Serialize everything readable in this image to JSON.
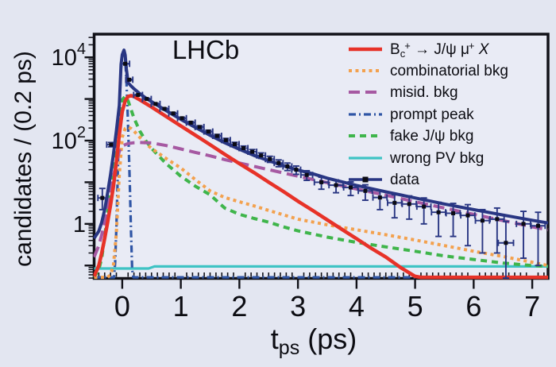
{
  "figure": {
    "title": "LHCb",
    "background": "#e3e6f1",
    "plot_background": "#e9ebf5",
    "frame_color": "#111118",
    "text_color": "#0c0c12"
  },
  "axes": {
    "x": {
      "label": "t_ps (ps)",
      "label_base": "t",
      "label_sub": "ps",
      "label_rest": " (ps)",
      "min": -0.48,
      "max": 7.27,
      "major_ticks": [
        0,
        1,
        2,
        3,
        4,
        5,
        6,
        7
      ],
      "minor_step": 0.1
    },
    "y": {
      "label": "candidates / (0.2 ps)",
      "scale": "log",
      "min": 0.049,
      "max": 36000,
      "decade_exponents": [
        -1,
        0,
        1,
        2,
        3,
        4
      ],
      "tick_labels": [
        {
          "value": 10000,
          "base": "10",
          "sup": "4"
        },
        {
          "value": 100,
          "base": "10",
          "sup": "2"
        },
        {
          "value": 1,
          "base": "1",
          "sup": null
        }
      ]
    }
  },
  "legend": {
    "items": [
      {
        "series": "signal",
        "label": "Bc+ → J/ψ μ+ X",
        "segments": [
          {
            "t": "B"
          },
          {
            "t": "c",
            "sub": true
          },
          {
            "t": "+",
            "sup": true
          },
          {
            "t": " → J/ψ "
          },
          {
            "t": "μ"
          },
          {
            "t": "+",
            "sup": true
          },
          {
            "t": " "
          },
          {
            "t": "X",
            "italic": true
          }
        ]
      },
      {
        "series": "combinatorial",
        "label": "combinatorial bkg"
      },
      {
        "series": "misid",
        "label": "misid. bkg"
      },
      {
        "series": "prompt",
        "label": "prompt peak"
      },
      {
        "series": "fake",
        "label": "fake J/ψ bkg"
      },
      {
        "series": "wrongpv",
        "label": "wrong PV bkg"
      },
      {
        "series": "data",
        "label": "data"
      }
    ]
  },
  "chart_data": {
    "type": "line",
    "title": "LHCb",
    "xlabel": "t_ps (ps)",
    "ylabel": "candidates / (0.2 ps)",
    "xlim": [
      -0.48,
      7.27
    ],
    "ylim": [
      0.049,
      36000
    ],
    "yscale": "log",
    "legend_position": "top-right",
    "grid": false,
    "draw_order": [
      "wrongpv",
      "prompt",
      "fake",
      "combinatorial",
      "misid",
      "signal",
      "total"
    ],
    "series": [
      {
        "id": "signal",
        "label": "Bc+ → J/ψ μ+ X",
        "color": "#e73228",
        "dash": "",
        "width": 4.5,
        "points": [
          [
            -0.48,
            0.055
          ],
          [
            -0.4,
            0.1
          ],
          [
            -0.35,
            0.2
          ],
          [
            -0.3,
            0.45
          ],
          [
            -0.25,
            1.1
          ],
          [
            -0.2,
            2.8
          ],
          [
            -0.15,
            8
          ],
          [
            -0.1,
            30
          ],
          [
            -0.05,
            140
          ],
          [
            0,
            500
          ],
          [
            0.05,
            900
          ],
          [
            0.1,
            1150
          ],
          [
            0.15,
            1200
          ],
          [
            0.2,
            1150
          ],
          [
            0.3,
            950
          ],
          [
            0.4,
            780
          ],
          [
            0.5,
            640
          ],
          [
            0.75,
            380
          ],
          [
            1,
            225
          ],
          [
            1.25,
            134
          ],
          [
            1.5,
            80
          ],
          [
            1.75,
            47
          ],
          [
            2,
            28
          ],
          [
            2.25,
            17
          ],
          [
            2.5,
            10
          ],
          [
            2.75,
            6
          ],
          [
            3,
            3.5
          ],
          [
            3.25,
            2.1
          ],
          [
            3.5,
            1.25
          ],
          [
            3.75,
            0.74
          ],
          [
            4,
            0.44
          ],
          [
            4.25,
            0.26
          ],
          [
            4.5,
            0.16
          ],
          [
            4.75,
            0.09
          ],
          [
            5,
            0.055
          ],
          [
            5.1,
            0.052
          ],
          [
            7.27,
            0.052
          ]
        ]
      },
      {
        "id": "combinatorial",
        "label": "combinatorial bkg",
        "color": "#f3a14e",
        "dash": "4 4.5",
        "width": 4,
        "points": [
          [
            -0.48,
            0.052
          ],
          [
            -0.25,
            0.052
          ],
          [
            -0.2,
            0.06
          ],
          [
            -0.15,
            0.1
          ],
          [
            -0.1,
            0.6
          ],
          [
            -0.05,
            15
          ],
          [
            0,
            120
          ],
          [
            0.05,
            195
          ],
          [
            0.1,
            210
          ],
          [
            0.15,
            195
          ],
          [
            0.2,
            170
          ],
          [
            0.3,
            120
          ],
          [
            0.4,
            85
          ],
          [
            0.5,
            65
          ],
          [
            0.75,
            37
          ],
          [
            1,
            22
          ],
          [
            1.25,
            11.5
          ],
          [
            1.5,
            6.2
          ],
          [
            1.75,
            4.3
          ],
          [
            2,
            3.4
          ],
          [
            2.25,
            2.7
          ],
          [
            2.5,
            2.1
          ],
          [
            2.75,
            1.65
          ],
          [
            3,
            1.3
          ],
          [
            3.5,
            0.95
          ],
          [
            4,
            0.72
          ],
          [
            4.5,
            0.55
          ],
          [
            5,
            0.41
          ],
          [
            5.5,
            0.3
          ],
          [
            6,
            0.22
          ],
          [
            6.5,
            0.165
          ],
          [
            7,
            0.12
          ],
          [
            7.27,
            0.1
          ]
        ]
      },
      {
        "id": "misid",
        "label": "misid. bkg",
        "color": "#a659a2",
        "dash": "14 7",
        "width": 4,
        "points": [
          [
            -0.48,
            0.16
          ],
          [
            -0.4,
            0.3
          ],
          [
            -0.35,
            0.55
          ],
          [
            -0.3,
            1.1
          ],
          [
            -0.25,
            2.5
          ],
          [
            -0.2,
            6
          ],
          [
            -0.15,
            14
          ],
          [
            -0.1,
            30
          ],
          [
            -0.05,
            55
          ],
          [
            0,
            75
          ],
          [
            0.1,
            85
          ],
          [
            0.2,
            89
          ],
          [
            0.3,
            90
          ],
          [
            0.5,
            88
          ],
          [
            0.75,
            76
          ],
          [
            1,
            63
          ],
          [
            1.25,
            52
          ],
          [
            1.5,
            43
          ],
          [
            1.75,
            35
          ],
          [
            2,
            29
          ],
          [
            2.5,
            20
          ],
          [
            3,
            14
          ],
          [
            3.5,
            9.8
          ],
          [
            4,
            6.9
          ],
          [
            4.5,
            4.9
          ],
          [
            5,
            3.4
          ],
          [
            5.5,
            2.4
          ],
          [
            6,
            1.7
          ],
          [
            6.5,
            1.2
          ],
          [
            7,
            0.85
          ],
          [
            7.27,
            0.72
          ]
        ]
      },
      {
        "id": "prompt",
        "label": "prompt peak",
        "color": "#2f55a5",
        "dash": "9 4 2 4",
        "width": 3.2,
        "points": [
          [
            -0.48,
            0.052
          ],
          [
            -0.14,
            0.052
          ],
          [
            -0.12,
            0.12
          ],
          [
            -0.1,
            0.8
          ],
          [
            -0.08,
            10
          ],
          [
            -0.06,
            120
          ],
          [
            -0.04,
            1200
          ],
          [
            -0.02,
            5500
          ],
          [
            0,
            10000
          ],
          [
            0.03,
            12800
          ],
          [
            0.05,
            9000
          ],
          [
            0.07,
            3000
          ],
          [
            0.09,
            600
          ],
          [
            0.11,
            80
          ],
          [
            0.13,
            8
          ],
          [
            0.15,
            0.6
          ],
          [
            0.17,
            0.08
          ],
          [
            0.19,
            0.052
          ],
          [
            7.27,
            0.052
          ]
        ]
      },
      {
        "id": "fake",
        "label": "fake J/ψ bkg",
        "color": "#3fb54b",
        "dash": "8 6",
        "width": 4,
        "points": [
          [
            -0.48,
            0.052
          ],
          [
            -0.4,
            0.08
          ],
          [
            -0.35,
            0.15
          ],
          [
            -0.3,
            0.5
          ],
          [
            -0.25,
            1.8
          ],
          [
            -0.2,
            6
          ],
          [
            -0.15,
            25
          ],
          [
            -0.1,
            110
          ],
          [
            -0.05,
            450
          ],
          [
            0,
            950
          ],
          [
            0.05,
            1150
          ],
          [
            0.1,
            900
          ],
          [
            0.15,
            560
          ],
          [
            0.2,
            350
          ],
          [
            0.3,
            170
          ],
          [
            0.4,
            100
          ],
          [
            0.5,
            65
          ],
          [
            0.75,
            28
          ],
          [
            1,
            14
          ],
          [
            1.25,
            8
          ],
          [
            1.5,
            5
          ],
          [
            1.75,
            2.4
          ],
          [
            2,
            1.7
          ],
          [
            2.25,
            1.35
          ],
          [
            2.5,
            1.1
          ],
          [
            2.75,
            0.85
          ],
          [
            3,
            0.68
          ],
          [
            3.5,
            0.48
          ],
          [
            4,
            0.36
          ],
          [
            4.5,
            0.28
          ],
          [
            5,
            0.22
          ],
          [
            5.5,
            0.17
          ],
          [
            6,
            0.14
          ],
          [
            6.5,
            0.115
          ],
          [
            7,
            0.1
          ],
          [
            7.27,
            0.095
          ]
        ]
      },
      {
        "id": "wrongpv",
        "label": "wrong PV bkg",
        "color": "#3fc3c4",
        "dash": "",
        "width": 3.2,
        "points": [
          [
            -0.48,
            0.085
          ],
          [
            0.45,
            0.085
          ],
          [
            0.55,
            0.095
          ],
          [
            7.27,
            0.095
          ]
        ]
      },
      {
        "id": "total",
        "label": "total fit",
        "color": "#293683",
        "dash": "",
        "width": 4,
        "points": [
          [
            -0.48,
            0.45
          ],
          [
            -0.4,
            0.67
          ],
          [
            -0.35,
            1.1
          ],
          [
            -0.3,
            2.2
          ],
          [
            -0.25,
            5.6
          ],
          [
            -0.2,
            15
          ],
          [
            -0.15,
            47
          ],
          [
            -0.1,
            170
          ],
          [
            -0.05,
            700
          ],
          [
            -0.02,
            6700
          ],
          [
            0,
            11600
          ],
          [
            0.03,
            14900
          ],
          [
            0.05,
            11300
          ],
          [
            0.07,
            5300
          ],
          [
            0.1,
            2450
          ],
          [
            0.15,
            2050
          ],
          [
            0.2,
            1760
          ],
          [
            0.3,
            1340
          ],
          [
            0.4,
            1060
          ],
          [
            0.5,
            860
          ],
          [
            0.75,
            525
          ],
          [
            1,
            325
          ],
          [
            1.25,
            206
          ],
          [
            1.5,
            134
          ],
          [
            1.75,
            89
          ],
          [
            2,
            62
          ],
          [
            2.25,
            44
          ],
          [
            2.5,
            33
          ],
          [
            2.75,
            25
          ],
          [
            3,
            19.6
          ],
          [
            3.25,
            16
          ],
          [
            3.5,
            12.5
          ],
          [
            4,
            8.4
          ],
          [
            4.5,
            5.9
          ],
          [
            5,
            4.2
          ],
          [
            5.5,
            3
          ],
          [
            6,
            2.2
          ],
          [
            6.5,
            1.63
          ],
          [
            7,
            1.22
          ],
          [
            7.27,
            1.05
          ]
        ]
      }
    ],
    "data_points": {
      "id": "data",
      "label": "data",
      "marker_color": "#0b0b14",
      "bar_color": "#293683",
      "points": [
        [
          -0.34,
          4.2,
          2.0,
          2.9,
          0.075
        ],
        [
          -0.19,
          80,
          9,
          10,
          0.075
        ],
        [
          0.05,
          7000,
          84,
          84,
          0.075
        ],
        [
          0.12,
          2900,
          54,
          54,
          0.06
        ],
        [
          0.27,
          1250,
          35,
          35,
          0.075
        ],
        [
          0.42,
          1000,
          32,
          32,
          0.075
        ],
        [
          0.57,
          760,
          28,
          28,
          0.075
        ],
        [
          0.72,
          580,
          24,
          24,
          0.075
        ],
        [
          0.87,
          450,
          21,
          21,
          0.075
        ],
        [
          1.02,
          345,
          19,
          19,
          0.075
        ],
        [
          1.17,
          270,
          16,
          16,
          0.075
        ],
        [
          1.32,
          212,
          15,
          15,
          0.075
        ],
        [
          1.47,
          165,
          13,
          13,
          0.075
        ],
        [
          1.62,
          130,
          11,
          11,
          0.075
        ],
        [
          1.77,
          103,
          10,
          10,
          0.075
        ],
        [
          1.92,
          82,
          9,
          9,
          0.075
        ],
        [
          2.07,
          66,
          8,
          8,
          0.075
        ],
        [
          2.22,
          54,
          7,
          7,
          0.075
        ],
        [
          2.37,
          44,
          6.6,
          6.6,
          0.075
        ],
        [
          2.52,
          36,
          6,
          6,
          0.075
        ],
        [
          2.67,
          29,
          5.4,
          5.4,
          0.075
        ],
        [
          2.82,
          24,
          4.9,
          4.9,
          0.075
        ],
        [
          2.97,
          20,
          4.5,
          4.5,
          0.075
        ],
        [
          3.15,
          15,
          3.9,
          3.9,
          0.1
        ],
        [
          3.4,
          10,
          3.2,
          3.2,
          0.12
        ],
        [
          3.65,
          8.5,
          2.9,
          2.9,
          0.12
        ],
        [
          3.9,
          7.5,
          2.7,
          2.7,
          0.12
        ],
        [
          4.15,
          6.2,
          2.5,
          2.5,
          0.12
        ],
        [
          4.4,
          4.3,
          2.1,
          2.1,
          0.12
        ],
        [
          4.65,
          3.2,
          1.8,
          1.8,
          0.12
        ],
        [
          4.9,
          3.0,
          1.7,
          1.7,
          0.12
        ],
        [
          5.15,
          2.6,
          1.6,
          1.6,
          0.12
        ],
        [
          5.4,
          1.9,
          1.4,
          1.4,
          0.12
        ],
        [
          5.65,
          1.8,
          1.3,
          1.3,
          0.12
        ],
        [
          5.9,
          1.6,
          1.3,
          1.3,
          0.12
        ],
        [
          6.15,
          1.2,
          1.0,
          1.0,
          0.12
        ],
        [
          6.4,
          1.3,
          1.1,
          1.1,
          0.12
        ],
        [
          6.55,
          0.35,
          0.3,
          0.8,
          0.13
        ],
        [
          6.85,
          1.0,
          0.85,
          1.0,
          0.12
        ],
        [
          7.1,
          0.9,
          0.8,
          1.0,
          0.12
        ]
      ]
    }
  }
}
